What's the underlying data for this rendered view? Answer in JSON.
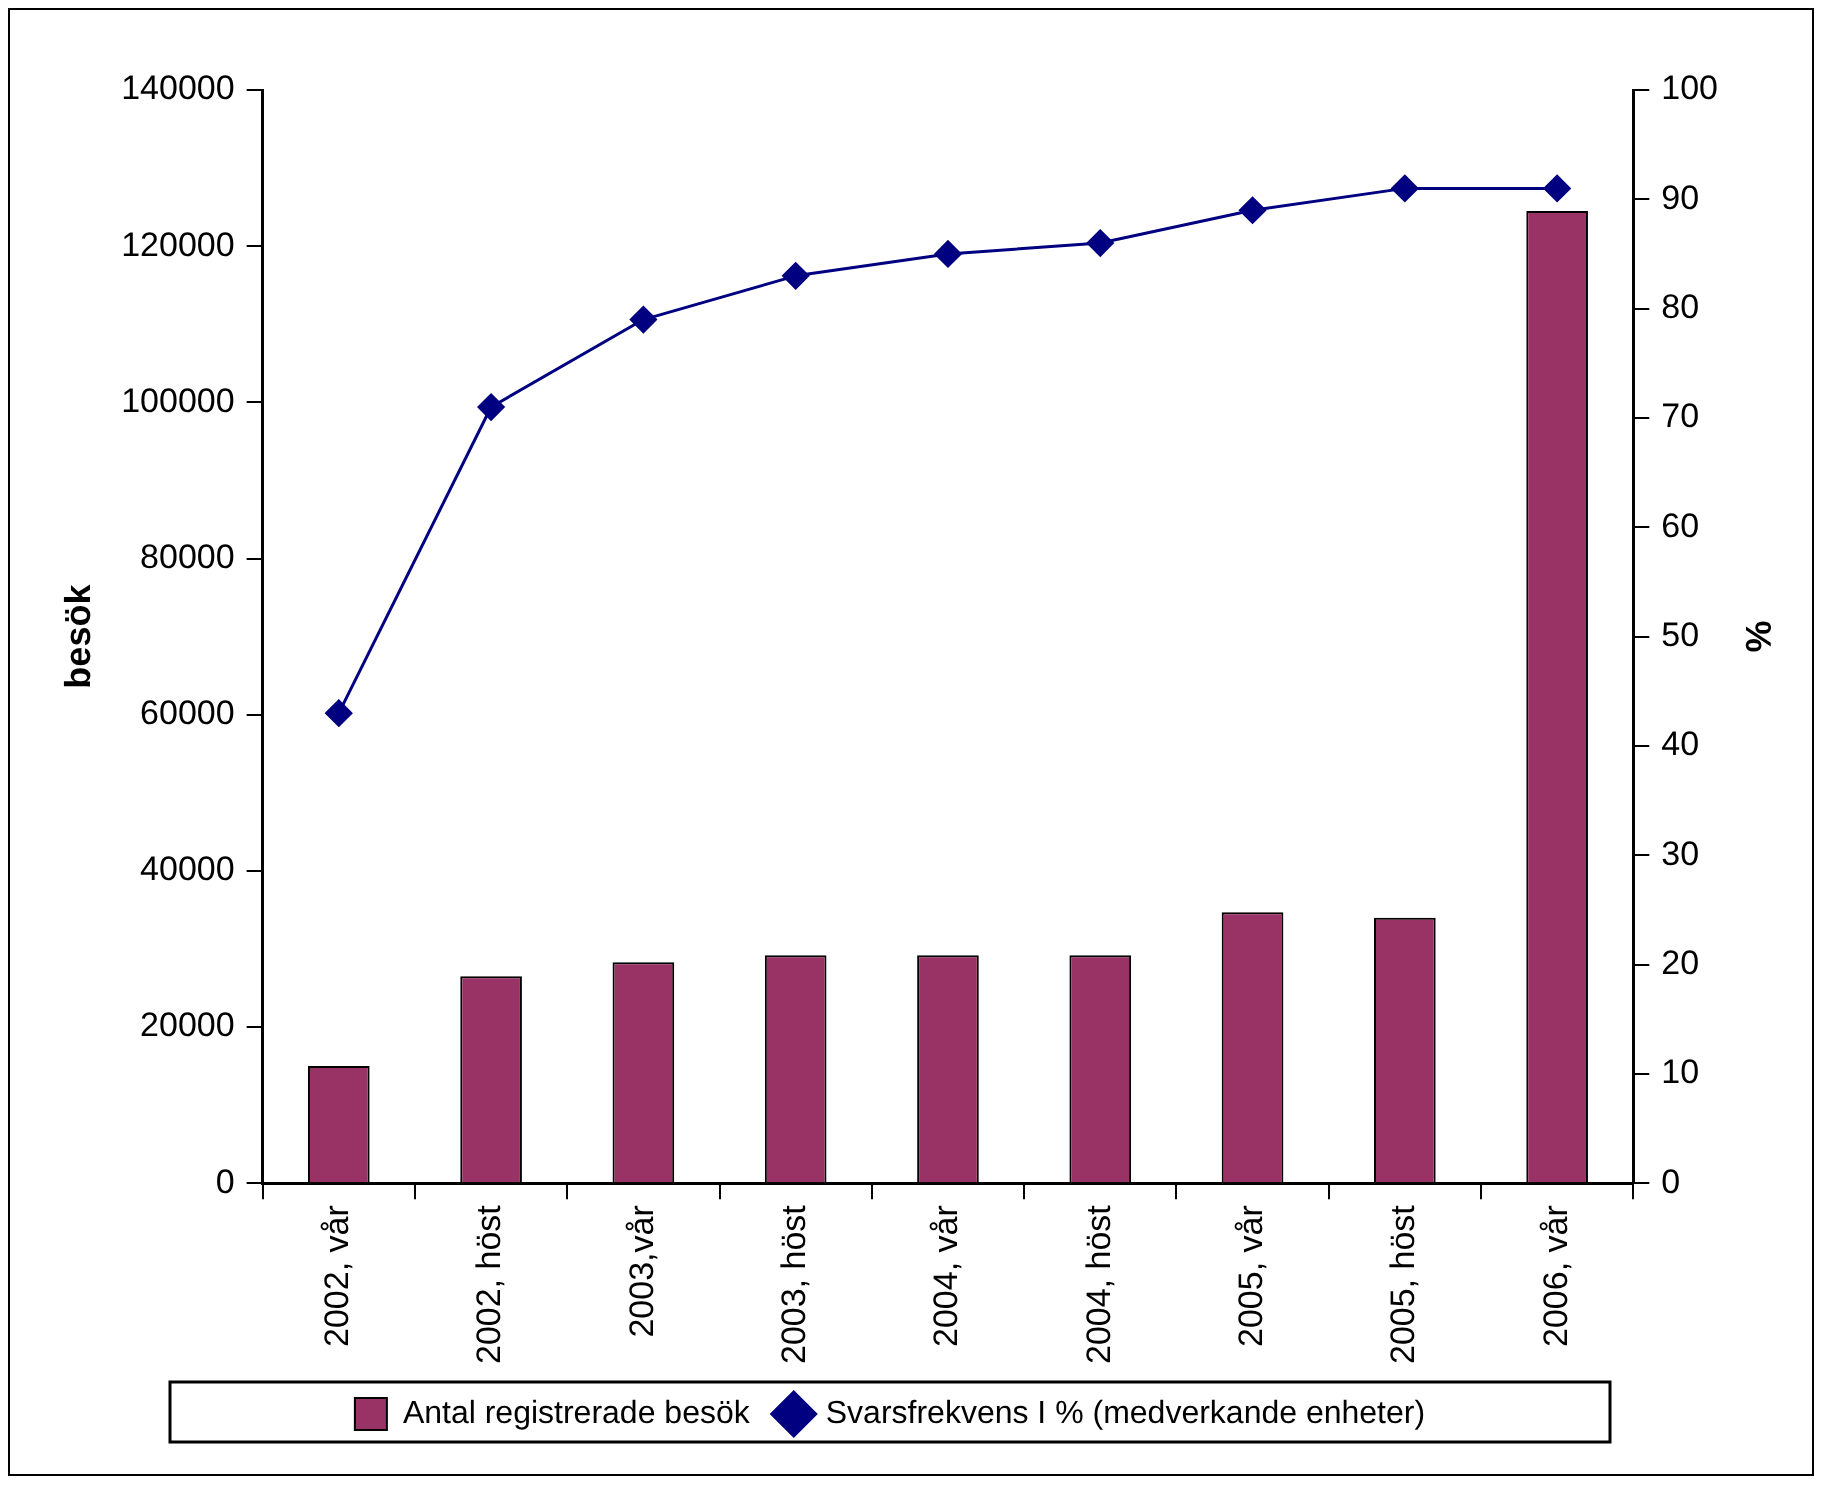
{
  "chart_data": {
    "type": "bar",
    "categories": [
      "2002, vår",
      "2002, höst",
      "2003,vår",
      "2003, höst",
      "2004, vår",
      "2004, höst",
      "2005, vår",
      "2005, höst",
      "2006, vår"
    ],
    "series": [
      {
        "name": "Antal registrerade besök",
        "color": "#993366",
        "values": [
          15000,
          26500,
          28300,
          29200,
          29200,
          29200,
          34700,
          34000,
          124500
        ]
      },
      {
        "name": "Svarsfrekvens I % (medverkande enheter)",
        "type": "line",
        "axis": "y2",
        "color": "#000080",
        "values": [
          43,
          71,
          79,
          83,
          85,
          86,
          89,
          91,
          91
        ]
      }
    ],
    "ylabel": "besök",
    "y2label": "%",
    "ylim": [
      0,
      140000
    ],
    "yticks": [
      0,
      20000,
      40000,
      60000,
      80000,
      100000,
      120000,
      140000
    ],
    "y2lim": [
      0,
      100
    ],
    "y2ticks": [
      0,
      10,
      20,
      30,
      40,
      50,
      60,
      70,
      80,
      90,
      100
    ],
    "grid": false,
    "legend": "bottom",
    "marker": "diamond"
  }
}
